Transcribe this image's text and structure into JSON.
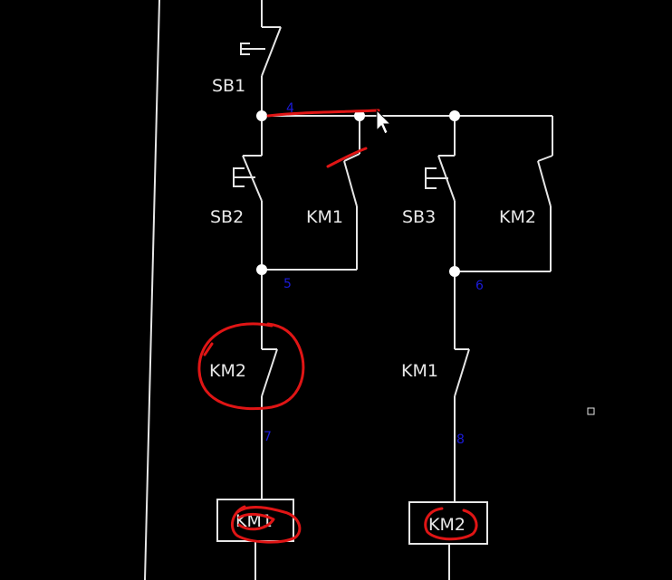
{
  "diagram": {
    "contacts": {
      "sb1": "SB1",
      "sb2": "SB2",
      "km1_seal": "KM1",
      "sb3": "SB3",
      "km2_seal": "KM2",
      "km2_interlock": "KM2",
      "km1_interlock": "KM1"
    },
    "coils": {
      "coil_km1": "KM1",
      "coil_km2": "KM2"
    },
    "node_numbers": {
      "n4": "4",
      "n5": "5",
      "n6": "6",
      "n7": "7",
      "n8": "8"
    },
    "colors": {
      "background": "#000000",
      "wire": "#e6e6e6",
      "annotation": "#e01515",
      "node_number": "#1b1bd9"
    }
  }
}
